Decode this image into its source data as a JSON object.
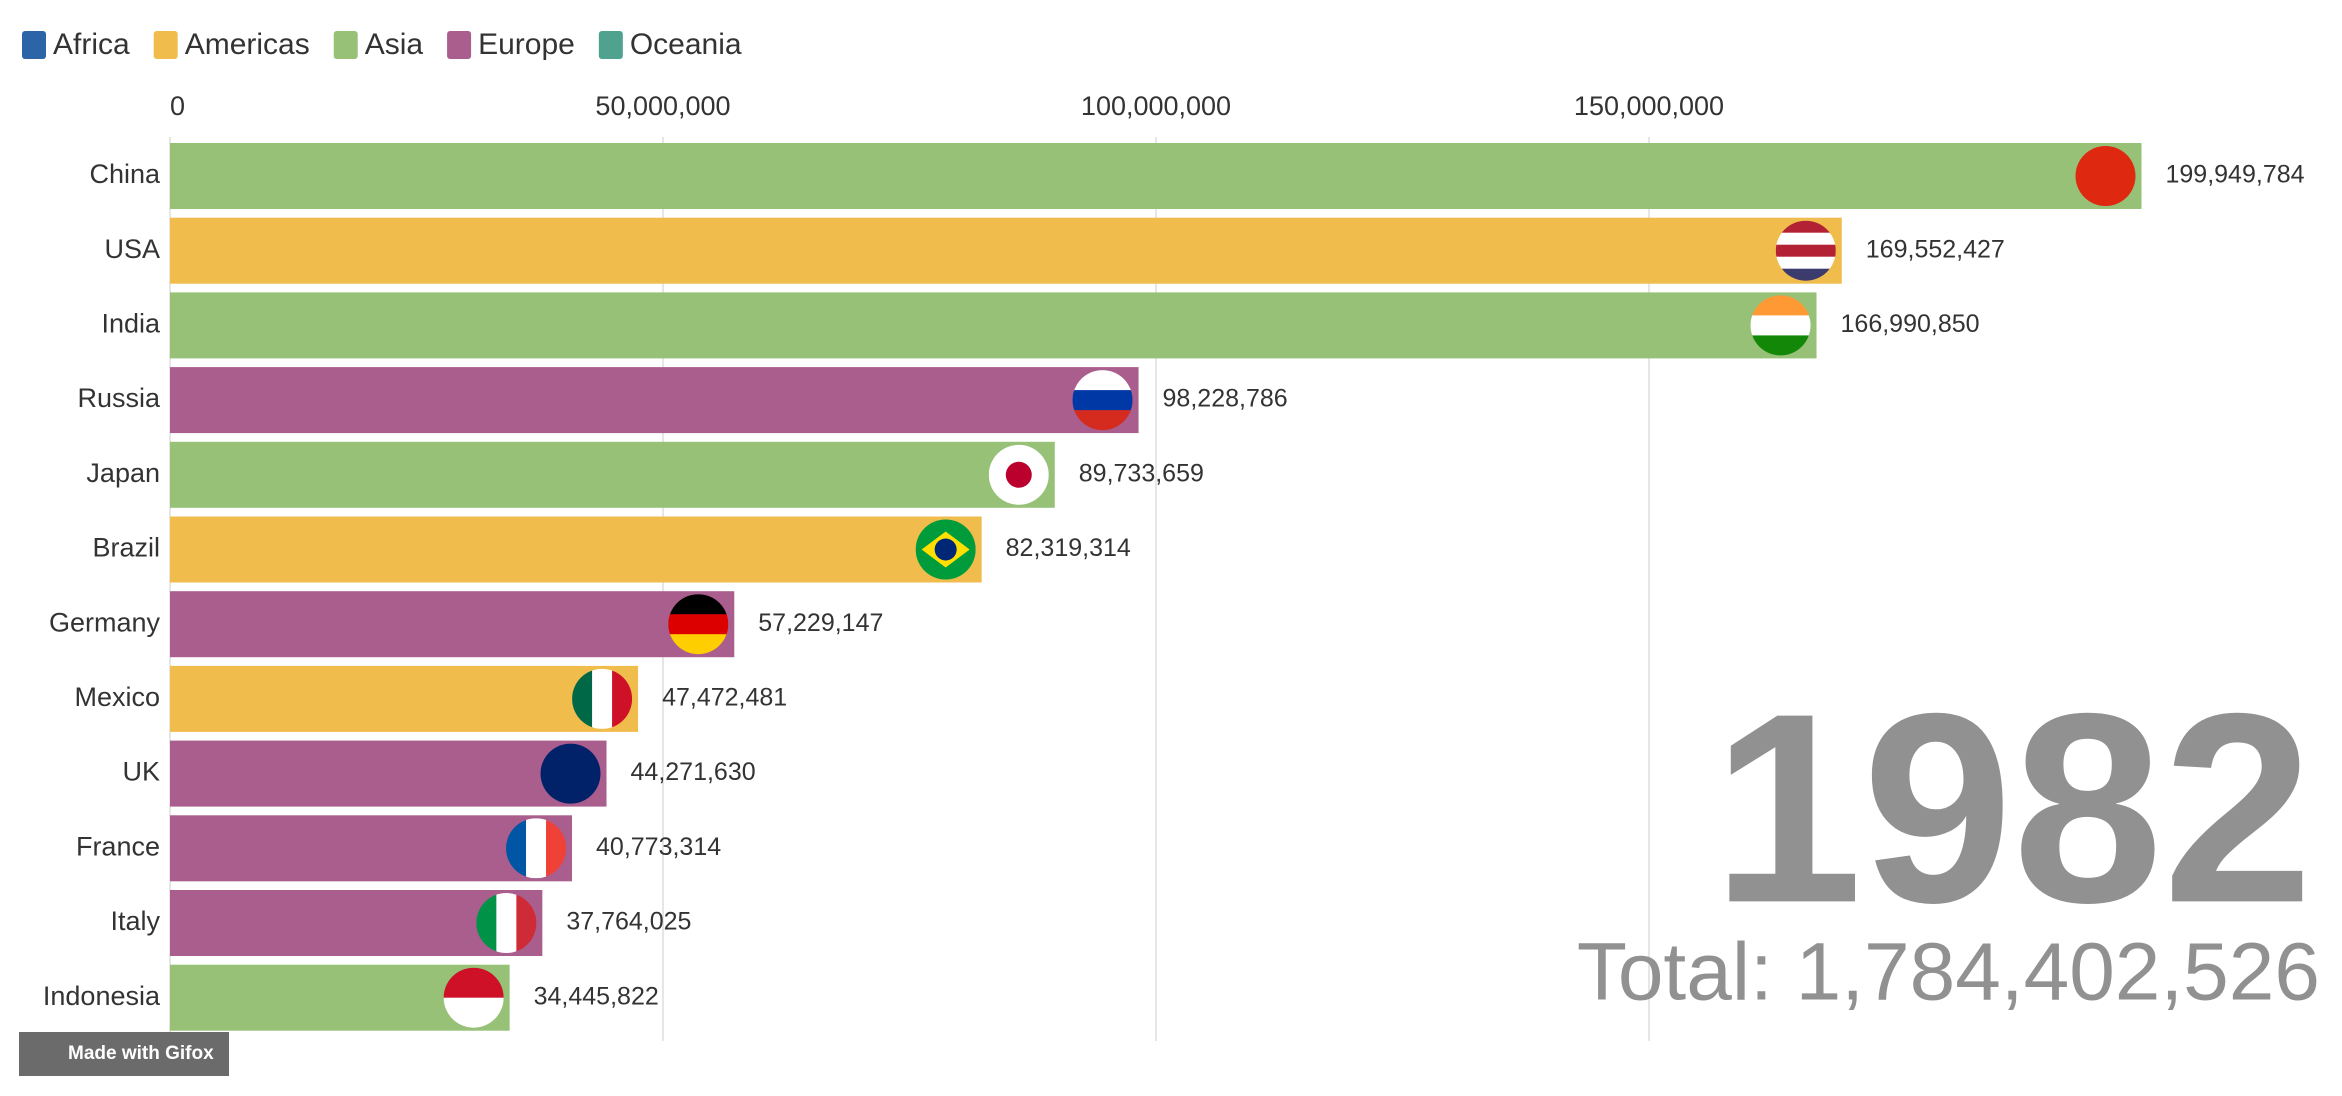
{
  "chart_data": {
    "type": "bar",
    "orientation": "horizontal",
    "categories": [
      "China",
      "USA",
      "India",
      "Russia",
      "Japan",
      "Brazil",
      "Germany",
      "Mexico",
      "UK",
      "France",
      "Italy",
      "Indonesia"
    ],
    "series": [
      {
        "name": "Africa",
        "color": "#2b65a7",
        "values": [
          null,
          null,
          null,
          null,
          null,
          null,
          null,
          null,
          null,
          null,
          null,
          null
        ],
        "value_labels": [
          null,
          null,
          null,
          null,
          null,
          null,
          null,
          null,
          null,
          null,
          null,
          null
        ]
      },
      {
        "name": "Americas",
        "color": "#f0bc4c",
        "values": [
          null,
          169552427,
          null,
          null,
          null,
          82319314,
          null,
          47472481,
          null,
          null,
          null,
          null
        ],
        "value_labels": [
          null,
          "169,552,427",
          null,
          null,
          null,
          "82,319,314",
          null,
          "47,472,481",
          null,
          null,
          null,
          null
        ]
      },
      {
        "name": "Asia",
        "color": "#96c176",
        "values": [
          199949784,
          null,
          166990850,
          null,
          89733659,
          null,
          null,
          null,
          null,
          null,
          null,
          34445822
        ],
        "value_labels": [
          "199,949,784",
          null,
          "166,990,850",
          null,
          "89,733,659",
          null,
          null,
          null,
          null,
          null,
          null,
          "34,445,822"
        ]
      },
      {
        "name": "Europe",
        "color": "#a95e8d",
        "values": [
          null,
          null,
          null,
          98228786,
          null,
          null,
          57229147,
          null,
          44271630,
          40773314,
          37764025,
          null
        ],
        "value_labels": [
          null,
          null,
          null,
          "98,228,786",
          null,
          null,
          "57,229,147",
          null,
          "44,271,630",
          "40,773,314",
          "37,764,025",
          null
        ]
      },
      {
        "name": "Oceania",
        "color": "#4fa38e",
        "values": [
          null,
          null,
          null,
          null,
          null,
          null,
          null,
          null,
          null,
          null,
          null,
          null
        ],
        "value_labels": [
          null,
          null,
          null,
          null,
          null,
          null,
          null,
          null,
          null,
          null,
          null,
          null
        ]
      }
    ],
    "xlim": [
      0,
      200000000
    ],
    "xticks": [
      0,
      {
        "value": 50000000,
        "label": "50,000,000"
      },
      {
        "value": 100000000,
        "label": "100,000,000"
      },
      {
        "value": 150000000,
        "label": "150,000,000"
      }
    ],
    "grid": true,
    "year_label": "1982",
    "total_label": "Total: 1,784,402,526"
  },
  "watermark": "Made with Gifox"
}
